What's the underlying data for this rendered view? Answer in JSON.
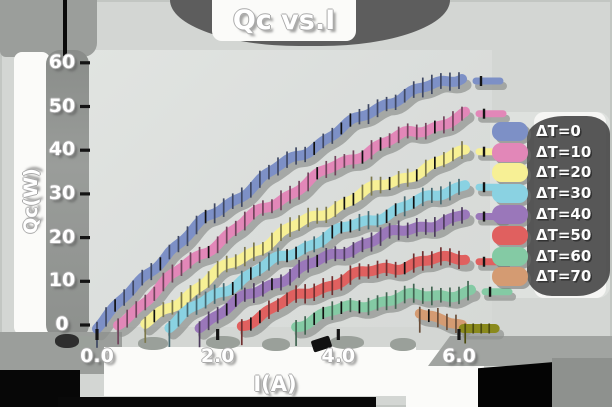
{
  "chart_data": {
    "type": "line",
    "title": "Qc vs.I",
    "xlabel": "I(A)",
    "ylabel": "Qc(W)",
    "xlim": [
      0,
      6.9
    ],
    "ylim": [
      0,
      62
    ],
    "grid": false,
    "legend_position": "right",
    "x_ticks": {
      "values": [
        0,
        2,
        4,
        6
      ],
      "labels": [
        "0.0",
        "2.0",
        "4.0",
        "6.0"
      ]
    },
    "y_ticks": {
      "values": [
        0,
        10,
        20,
        30,
        40,
        50,
        60
      ],
      "labels": [
        "0",
        "10",
        "20",
        "30",
        "40",
        "50",
        "60"
      ]
    },
    "series": [
      {
        "name": "ΔT=0",
        "color": "#7d90c6",
        "points": [
          [
            0,
            0
          ],
          [
            0.6,
            8
          ],
          [
            1.2,
            17
          ],
          [
            1.8,
            24
          ],
          [
            2.4,
            30
          ],
          [
            3.0,
            36
          ],
          [
            3.6,
            41
          ],
          [
            4.2,
            46
          ],
          [
            4.8,
            51
          ],
          [
            5.4,
            54
          ],
          [
            6.05,
            57
          ]
        ]
      },
      {
        "name": "ΔT=10",
        "color": "#e287b8",
        "points": [
          [
            0.35,
            0
          ],
          [
            0.9,
            7
          ],
          [
            1.5,
            14
          ],
          [
            2.1,
            20
          ],
          [
            2.7,
            26
          ],
          [
            3.3,
            31
          ],
          [
            3.9,
            36
          ],
          [
            4.5,
            40
          ],
          [
            5.1,
            43.5
          ],
          [
            5.7,
            46
          ],
          [
            6.1,
            48
          ]
        ]
      },
      {
        "name": "ΔT=20",
        "color": "#f7f095",
        "points": [
          [
            0.8,
            0
          ],
          [
            1.4,
            6
          ],
          [
            2.0,
            12
          ],
          [
            2.6,
            17
          ],
          [
            3.2,
            22
          ],
          [
            3.8,
            26
          ],
          [
            4.4,
            30
          ],
          [
            5.0,
            33.5
          ],
          [
            5.6,
            36.5
          ],
          [
            6.1,
            40
          ]
        ]
      },
      {
        "name": "ΔT=30",
        "color": "#8ad2e2",
        "points": [
          [
            1.2,
            0
          ],
          [
            1.8,
            5.5
          ],
          [
            2.4,
            10.5
          ],
          [
            3.0,
            15
          ],
          [
            3.6,
            19
          ],
          [
            4.2,
            22.5
          ],
          [
            4.8,
            25.5
          ],
          [
            5.4,
            28.5
          ],
          [
            6.1,
            32.5
          ]
        ]
      },
      {
        "name": "ΔT=40",
        "color": "#9a77ba",
        "points": [
          [
            1.7,
            0
          ],
          [
            2.3,
            5
          ],
          [
            2.9,
            9.5
          ],
          [
            3.5,
            13.5
          ],
          [
            4.1,
            17
          ],
          [
            4.7,
            20
          ],
          [
            5.3,
            22.5
          ],
          [
            5.9,
            24
          ],
          [
            6.1,
            25
          ]
        ]
      },
      {
        "name": "ΔT=50",
        "color": "#e0605f",
        "points": [
          [
            2.4,
            0
          ],
          [
            3.0,
            4.5
          ],
          [
            3.6,
            8
          ],
          [
            4.2,
            11
          ],
          [
            4.8,
            13
          ],
          [
            5.4,
            14.5
          ],
          [
            6.1,
            15.5
          ]
        ]
      },
      {
        "name": "ΔT=60",
        "color": "#84caa4",
        "points": [
          [
            3.3,
            0
          ],
          [
            3.9,
            3
          ],
          [
            4.5,
            5
          ],
          [
            5.1,
            6.3
          ],
          [
            5.7,
            7
          ],
          [
            6.2,
            7.5
          ]
        ]
      },
      {
        "name": "ΔT=70",
        "color": "#d49b72",
        "points": [
          [
            5.35,
            3.5
          ],
          [
            5.6,
            1.8
          ],
          [
            5.85,
            0.3
          ],
          [
            6.05,
            -0.8
          ]
        ]
      }
    ],
    "artifact_segment": {
      "color": "#8a8a1c",
      "points": [
        [
          6.07,
          -0.8
        ],
        [
          6.6,
          -0.8
        ]
      ]
    }
  },
  "style_colors": {
    "background": "#d3d6d3",
    "plot_background": "#dcdfdc",
    "shadow_gray": "#8f928f",
    "shadow_dark": "#5d5d5d",
    "panel_white": "#fbfbf9",
    "tick_black": "#141414",
    "artifact_olive": "#8a8a1c"
  }
}
